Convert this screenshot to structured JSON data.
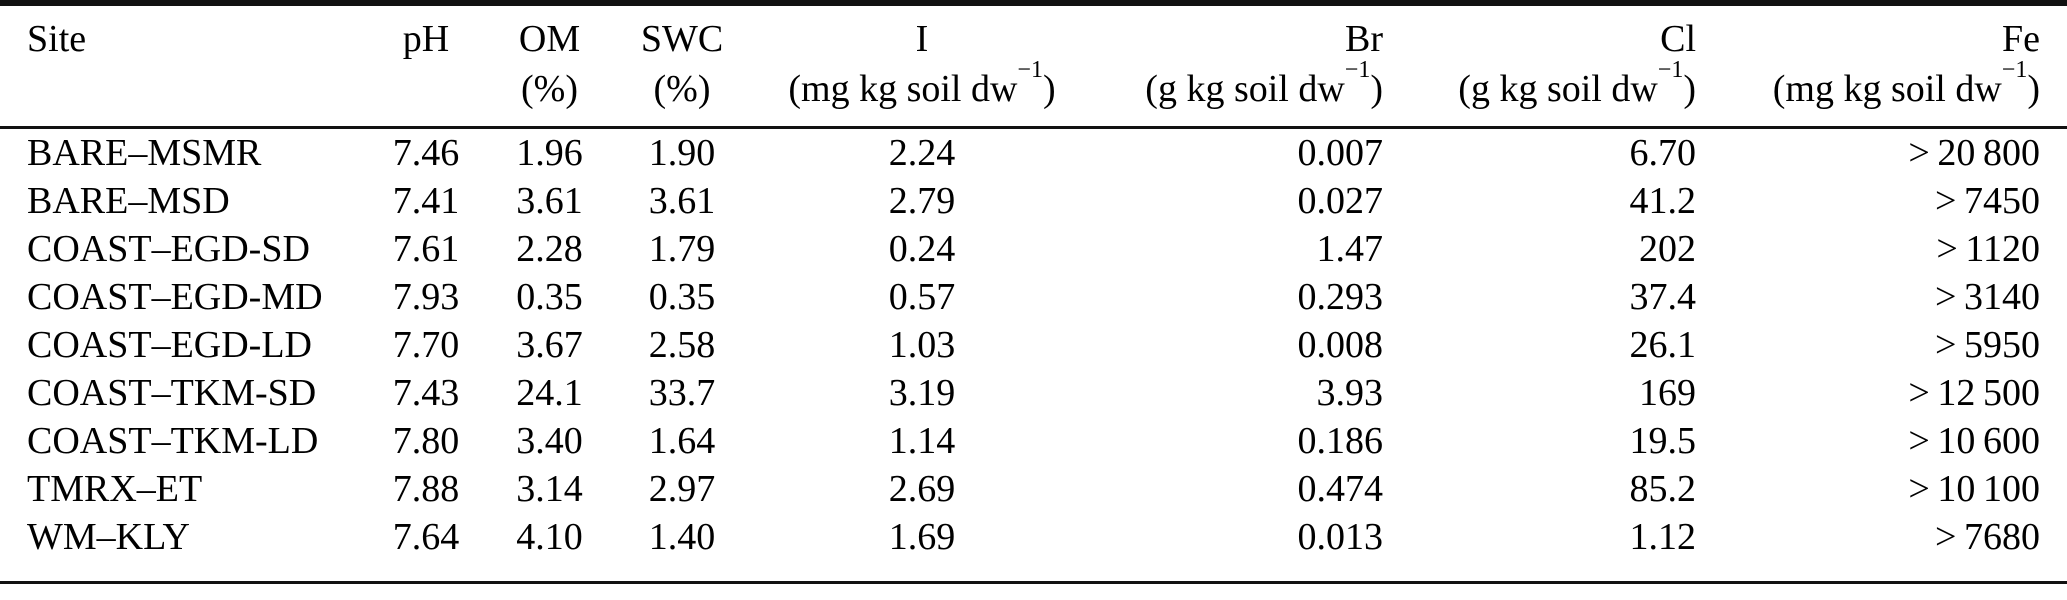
{
  "table": {
    "columns": [
      {
        "key": "site",
        "label": "Site",
        "unit_pre": "",
        "unit_sup": "",
        "unit_post": ""
      },
      {
        "key": "ph",
        "label": "pH",
        "unit_pre": "",
        "unit_sup": "",
        "unit_post": ""
      },
      {
        "key": "om",
        "label": "OM",
        "unit_pre": "(%)",
        "unit_sup": "",
        "unit_post": ""
      },
      {
        "key": "swc",
        "label": "SWC",
        "unit_pre": "(%)",
        "unit_sup": "",
        "unit_post": ""
      },
      {
        "key": "i",
        "label": "I",
        "unit_pre": "(mg kg soil dw",
        "unit_sup": "−1",
        "unit_post": ")"
      },
      {
        "key": "br",
        "label": "Br",
        "unit_pre": "(g kg soil dw",
        "unit_sup": "−1",
        "unit_post": ")"
      },
      {
        "key": "cl",
        "label": "Cl",
        "unit_pre": "(g kg soil dw",
        "unit_sup": "−1",
        "unit_post": ")"
      },
      {
        "key": "fe",
        "label": "Fe",
        "unit_pre": "(mg kg soil dw",
        "unit_sup": "−1",
        "unit_post": ")"
      }
    ],
    "rows": [
      {
        "site": "BARE–MSMR",
        "ph": "7.46",
        "om": "1.96",
        "swc": "1.90",
        "i": "2.24",
        "br": "0.007",
        "cl": "6.70",
        "fe": "> 20 800"
      },
      {
        "site": "BARE–MSD",
        "ph": "7.41",
        "om": "3.61",
        "swc": "3.61",
        "i": "2.79",
        "br": "0.027",
        "cl": "41.2",
        "fe": "> 7450"
      },
      {
        "site": "COAST–EGD-SD",
        "ph": "7.61",
        "om": "2.28",
        "swc": "1.79",
        "i": "0.24",
        "br": "1.47",
        "cl": "202",
        "fe": "> 1120"
      },
      {
        "site": "COAST–EGD-MD",
        "ph": "7.93",
        "om": "0.35",
        "swc": "0.35",
        "i": "0.57",
        "br": "0.293",
        "cl": "37.4",
        "fe": "> 3140"
      },
      {
        "site": "COAST–EGD-LD",
        "ph": "7.70",
        "om": "3.67",
        "swc": "2.58",
        "i": "1.03",
        "br": "0.008",
        "cl": "26.1",
        "fe": "> 5950"
      },
      {
        "site": "COAST–TKM-SD",
        "ph": "7.43",
        "om": "24.1",
        "swc": "33.7",
        "i": "3.19",
        "br": "3.93",
        "cl": "169",
        "fe": "> 12 500"
      },
      {
        "site": "COAST–TKM-LD",
        "ph": "7.80",
        "om": "3.40",
        "swc": "1.64",
        "i": "1.14",
        "br": "0.186",
        "cl": "19.5",
        "fe": "> 10 600"
      },
      {
        "site": "TMRX–ET",
        "ph": "7.88",
        "om": "3.14",
        "swc": "2.97",
        "i": "2.69",
        "br": "0.474",
        "cl": "85.2",
        "fe": "> 10 100"
      },
      {
        "site": "WM–KLY",
        "ph": "7.64",
        "om": "4.10",
        "swc": "1.40",
        "i": "1.69",
        "br": "0.013",
        "cl": "1.12",
        "fe": "> 7680"
      }
    ]
  }
}
